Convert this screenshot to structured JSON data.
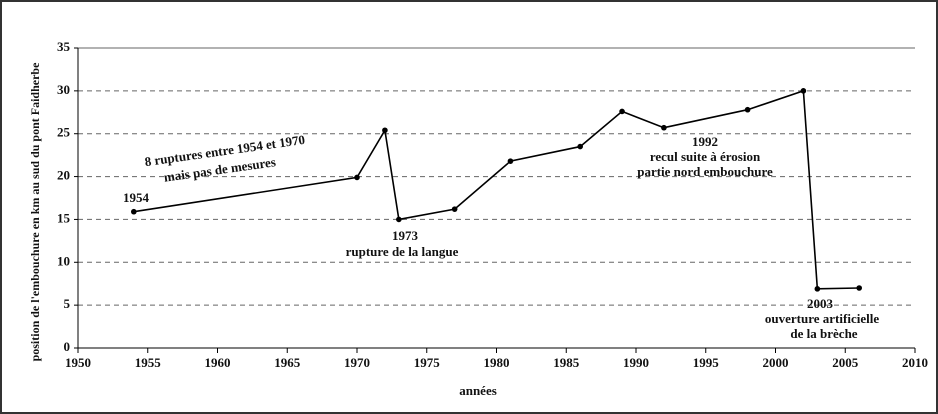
{
  "chart_data": {
    "type": "line",
    "xlabel": "années",
    "ylabel": "position de l'embouchure en km au sud du pont Faidherbe",
    "series": [
      {
        "name": "position",
        "color": "#000000",
        "x": [
          1954,
          1970,
          1972,
          1973,
          1977,
          1981,
          1986,
          1989,
          1992,
          1998,
          2002,
          2003,
          2006
        ],
        "values": [
          15.9,
          19.9,
          25.4,
          15.0,
          16.2,
          21.8,
          23.5,
          27.6,
          25.7,
          27.8,
          30.0,
          6.9,
          7.0
        ]
      }
    ],
    "xlim": [
      1950,
      2010
    ],
    "xticks": [
      1950,
      1955,
      1960,
      1965,
      1970,
      1975,
      1980,
      1985,
      1990,
      1995,
      2000,
      2005,
      2010
    ],
    "ylim": [
      0,
      35
    ],
    "yticks": [
      0,
      5,
      10,
      15,
      20,
      25,
      30,
      35
    ],
    "grid": true,
    "annotations": [
      "8 ruptures entre 1954 et 1970",
      "mais pas de mesures",
      "1954",
      "1973",
      "rupture de la langue",
      "1992",
      "recul suite à érosion",
      "partie nord embouchure",
      "2003",
      "ouverture artificielle",
      "de la brèche"
    ]
  }
}
